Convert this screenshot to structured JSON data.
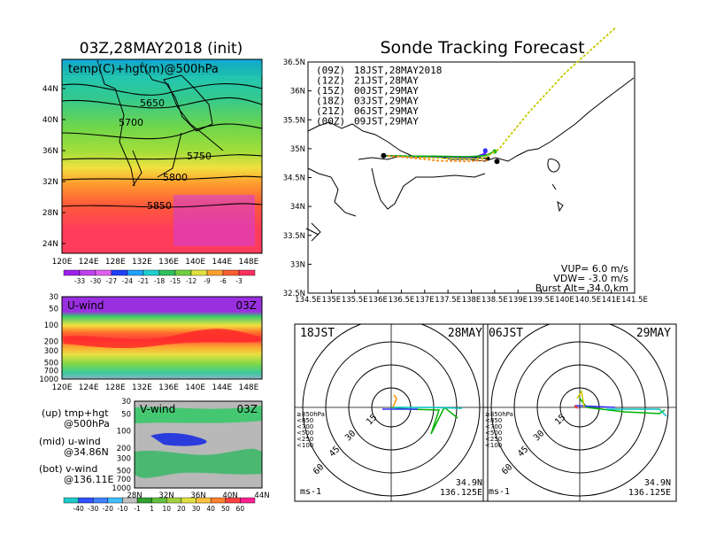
{
  "titles": {
    "main_left": "03Z,28MAY2018 (init)",
    "main_right": "Sonde Tracking Forecast"
  },
  "upper_map": {
    "label": "temp(C)+hgt(m)@500hPa",
    "lat_ticks": [
      "44N",
      "40N",
      "36N",
      "32N",
      "28N",
      "24N"
    ],
    "lon_ticks": [
      "120E",
      "124E",
      "128E",
      "132E",
      "136E",
      "140E",
      "144E",
      "148E"
    ],
    "contour_labels": [
      "5650",
      "5700",
      "5750",
      "5800",
      "5850"
    ],
    "colorbar_labels": [
      "-33",
      "-30",
      "-27",
      "-24",
      "-21",
      "-18",
      "-15",
      "-12",
      "-9",
      "-6",
      "-3"
    ]
  },
  "uwind": {
    "label": "U-wind",
    "time": "03Z",
    "p_ticks": [
      "30",
      "50",
      "100",
      "200",
      "300",
      "500",
      "700",
      "1000"
    ],
    "lon_ticks": [
      "120E",
      "124E",
      "128E",
      "132E",
      "136E",
      "140E",
      "144E",
      "148E"
    ]
  },
  "vwind": {
    "label": "V-wind",
    "time": "03Z",
    "p_ticks": [
      "30",
      "50",
      "100",
      "200",
      "300",
      "500",
      "700",
      "1000"
    ],
    "lat_ticks": [
      "28N",
      "32N",
      "36N",
      "40N",
      "44N"
    ]
  },
  "side_notes": {
    "up_a": "(up) tmp+hgt",
    "up_b": "@500hPa",
    "mid_a": "(mid) u-wind",
    "mid_b": "@34.86N",
    "bot_a": "(bot) v-wind",
    "bot_b": "@136.11E"
  },
  "wind_colorbar_labels": [
    "-40",
    "-30",
    "-20",
    "-10",
    "-1",
    "1",
    "10",
    "20",
    "30",
    "40",
    "50",
    "60"
  ],
  "track": {
    "legend": [
      {
        "run": "(09Z)",
        "valid": "18JST,28MAY2018",
        "color": "#000000"
      },
      {
        "run": "(12Z)",
        "valid": "21JST,28MAY",
        "color": "#a020f0"
      },
      {
        "run": "(15Z)",
        "valid": "00JST,29MAY",
        "color": "#3030ff"
      },
      {
        "run": "(18Z)",
        "valid": "03JST,29MAY",
        "color": "#00b000"
      },
      {
        "run": "(21Z)",
        "valid": "06JST,29MAY",
        "color": "#c8c800"
      },
      {
        "run": "(00Z)",
        "valid": "09JST,29MAY",
        "color": "#ff8000"
      }
    ],
    "lat_ticks": [
      "36.5N",
      "36N",
      "35.5N",
      "35N",
      "34.5N",
      "34N",
      "33.5N",
      "33N",
      "32.5N"
    ],
    "lon_ticks": [
      "134.5E",
      "135E",
      "135.5E",
      "136E",
      "136.5E",
      "137E",
      "137.5E",
      "138E",
      "138.5E",
      "139E",
      "139.5E",
      "140E",
      "140.5E",
      "141E",
      "141.5E"
    ],
    "params": [
      "VUP= 6.0 m/s",
      "VDW= -3.0 m/s",
      "Burst Alt= 34.0 km"
    ]
  },
  "hodographs": [
    {
      "time": "18JST",
      "date": "28MAY",
      "range_labels": [
        "15",
        "30",
        "45",
        "60"
      ],
      "units": "ms-1",
      "loc_lat": "34.9N",
      "loc_lon": "136.125E"
    },
    {
      "time": "06JST",
      "date": "29MAY",
      "range_labels": [
        "15",
        "30",
        "45",
        "60"
      ],
      "units": "ms-1",
      "loc_lat": "34.9N",
      "loc_lon": "136.125E"
    }
  ],
  "hodo_levels": [
    {
      "label": "≥850hPa",
      "color": "#ff3030"
    },
    {
      "label": "<850",
      "color": "#ff9000"
    },
    {
      "label": "<700",
      "color": "#c8c800"
    },
    {
      "label": "<500",
      "color": "#00b000"
    },
    {
      "label": "<250",
      "color": "#00c0c0"
    },
    {
      "label": "<100",
      "color": "#3030ff"
    }
  ],
  "chart_data": [
    {
      "type": "heatmap",
      "title": "03Z,28MAY2018 (init)",
      "variable": "temp(C)+hgt(m)@500hPa",
      "x_range": [
        120,
        150
      ],
      "y_range": [
        22,
        47
      ],
      "contour_levels": [
        5650,
        5700,
        5750,
        5800,
        5850
      ],
      "color_levels": [
        -33,
        -30,
        -27,
        -24,
        -21,
        -18,
        -15,
        -12,
        -9,
        -6,
        -3
      ]
    },
    {
      "type": "heatmap",
      "title": "U-wind 03Z",
      "x_range": [
        120,
        150
      ],
      "y_log": true,
      "y_range": [
        1000,
        30
      ],
      "color_levels": [
        -40,
        -30,
        -20,
        -10,
        -1,
        1,
        10,
        20,
        30,
        40,
        50,
        60
      ]
    },
    {
      "type": "heatmap",
      "title": "V-wind 03Z",
      "x_range": [
        28,
        44
      ],
      "y_log": true,
      "y_range": [
        1000,
        30
      ],
      "color_levels": [
        -40,
        -30,
        -20,
        -10,
        -1,
        1,
        10,
        20,
        30,
        40,
        50,
        60
      ]
    },
    {
      "type": "line",
      "title": "Sonde Tracking Forecast",
      "x_range": [
        134.5,
        141.5
      ],
      "y_range": [
        32.5,
        36.5
      ],
      "launch": [
        136.12,
        34.88
      ],
      "series": [
        {
          "name": "(09Z) 18JST,28MAY2018",
          "points": [
            [
              136.12,
              34.88
            ],
            [
              136.6,
              34.87
            ],
            [
              137.2,
              34.86
            ],
            [
              137.8,
              34.85
            ],
            [
              138.2,
              34.84
            ],
            [
              138.35,
              34.83
            ]
          ]
        },
        {
          "name": "(12Z) 21JST,28MAY",
          "points": [
            [
              136.12,
              34.88
            ],
            [
              136.7,
              34.86
            ],
            [
              137.4,
              34.86
            ],
            [
              138.0,
              34.85
            ],
            [
              138.3,
              34.9
            ],
            [
              138.3,
              34.95
            ]
          ]
        },
        {
          "name": "(15Z) 00JST,29MAY",
          "points": [
            [
              136.12,
              34.88
            ],
            [
              136.8,
              34.87
            ],
            [
              137.5,
              34.86
            ],
            [
              138.1,
              34.86
            ],
            [
              138.3,
              34.92
            ],
            [
              138.3,
              34.97
            ]
          ]
        },
        {
          "name": "(18Z) 03JST,29MAY",
          "points": [
            [
              136.12,
              34.88
            ],
            [
              136.7,
              34.87
            ],
            [
              137.3,
              34.87
            ],
            [
              137.9,
              34.86
            ],
            [
              138.3,
              34.88
            ],
            [
              138.5,
              34.95
            ]
          ]
        },
        {
          "name": "(21Z) 06JST,29MAY",
          "points": [
            [
              136.12,
              34.88
            ],
            [
              136.8,
              34.85
            ],
            [
              137.5,
              34.83
            ],
            [
              138.0,
              34.82
            ],
            [
              138.3,
              34.84
            ],
            [
              138.6,
              35.0
            ],
            [
              139.2,
              35.6
            ],
            [
              140.0,
              36.3
            ],
            [
              141.1,
              37.1
            ]
          ]
        },
        {
          "name": "(00Z) 09JST,29MAY",
          "points": [
            [
              136.12,
              34.88
            ],
            [
              136.7,
              34.84
            ],
            [
              137.3,
              34.79
            ],
            [
              137.9,
              34.78
            ],
            [
              138.35,
              34.8
            ]
          ]
        }
      ]
    }
  ]
}
